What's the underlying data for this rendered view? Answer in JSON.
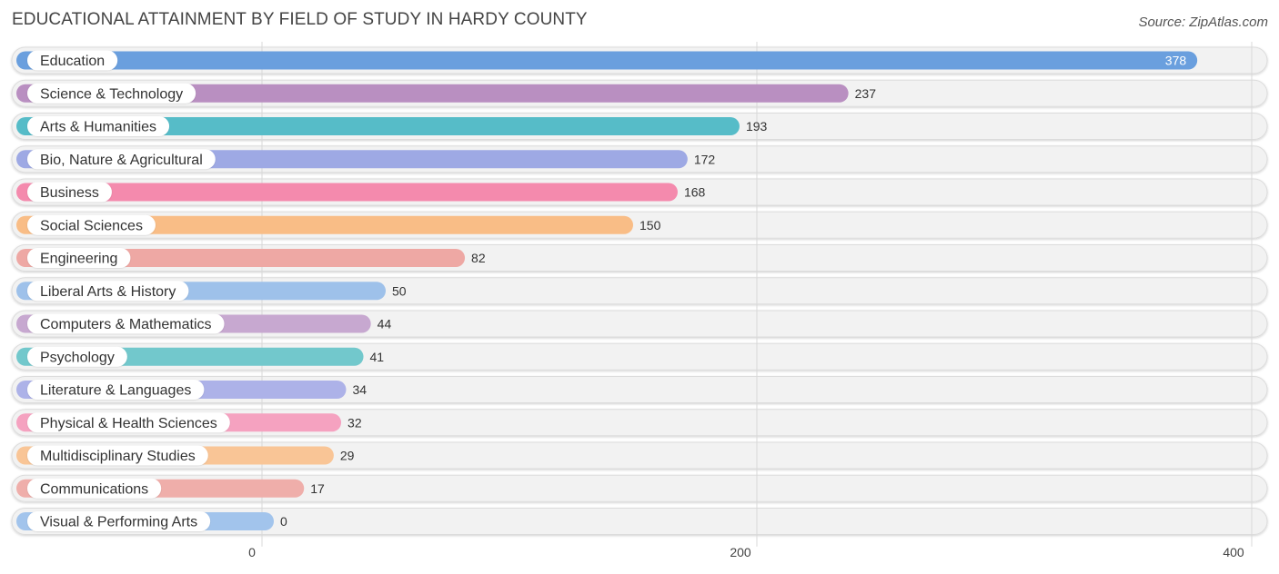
{
  "header": {
    "title": "EDUCATIONAL ATTAINMENT BY FIELD OF STUDY IN HARDY COUNTY",
    "source": "Source: ZipAtlas.com"
  },
  "chart_data": {
    "type": "bar",
    "orientation": "horizontal",
    "title": "EDUCATIONAL ATTAINMENT BY FIELD OF STUDY IN HARDY COUNTY",
    "xlabel": "",
    "ylabel": "",
    "xlim": [
      0,
      400
    ],
    "ticks": [
      0,
      200,
      400
    ],
    "tick_labels": [
      "0",
      "200",
      "400"
    ],
    "categories": [
      "Education",
      "Science & Technology",
      "Arts & Humanities",
      "Bio, Nature & Agricultural",
      "Business",
      "Social Sciences",
      "Engineering",
      "Liberal Arts & History",
      "Computers & Mathematics",
      "Psychology",
      "Literature & Languages",
      "Physical & Health Sciences",
      "Multidisciplinary Studies",
      "Communications",
      "Visual & Performing Arts"
    ],
    "values": [
      378,
      237,
      193,
      172,
      168,
      150,
      82,
      50,
      44,
      41,
      34,
      32,
      29,
      17,
      0
    ],
    "value_labels": [
      "378",
      "237",
      "193",
      "172",
      "168",
      "150",
      "82",
      "50",
      "44",
      "41",
      "34",
      "32",
      "29",
      "17",
      "0"
    ],
    "colors": [
      "#6a9fde",
      "#b98fc1",
      "#56bcc8",
      "#9ea9e4",
      "#f48aad",
      "#f9bd86",
      "#eea8a4",
      "#9ec1ea",
      "#c7a8d0",
      "#72c8cc",
      "#adb2e8",
      "#f5a2c0",
      "#f9c596",
      "#efaeaa",
      "#a2c4ec"
    ]
  }
}
